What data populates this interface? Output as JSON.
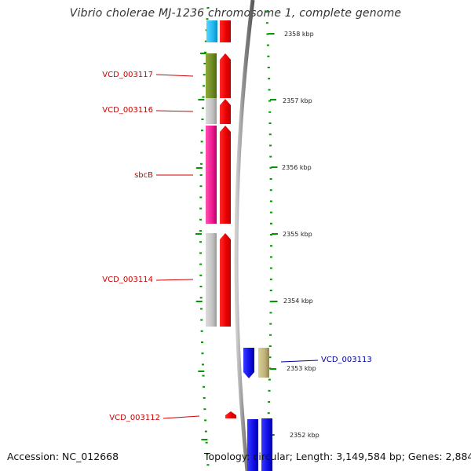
{
  "title": "Vibrio cholerae MJ-1236 chromosome 1, complete genome",
  "accession": "Accession: NC_012668",
  "summary": "Topology: circular; Length: 3,149,584 bp; Genes: 2,884",
  "ruler": [
    {
      "label": "2358 kbp"
    },
    {
      "label": "2357 kbp"
    },
    {
      "label": "2356 kbp"
    },
    {
      "label": "2355 kbp"
    },
    {
      "label": "2354 kbp"
    },
    {
      "label": "2353 kbp"
    },
    {
      "label": "2352 kbp"
    }
  ],
  "genes": [
    {
      "label": "VCD_003117",
      "color": "#cc0000"
    },
    {
      "label": "VCD_003116",
      "color": "#cc0000"
    },
    {
      "label": "sbcB",
      "color": "#cc0000"
    },
    {
      "label": "VCD_003114",
      "color": "#cc0000"
    },
    {
      "label": "VCD_003113",
      "color": "#000099"
    },
    {
      "label": "VCD_003112",
      "color": "#cc0000"
    }
  ],
  "colors": {
    "forward_strand": "#ff0000",
    "reverse_strand": "#0000ee",
    "tick": "#009900",
    "backbone": "#888888"
  }
}
